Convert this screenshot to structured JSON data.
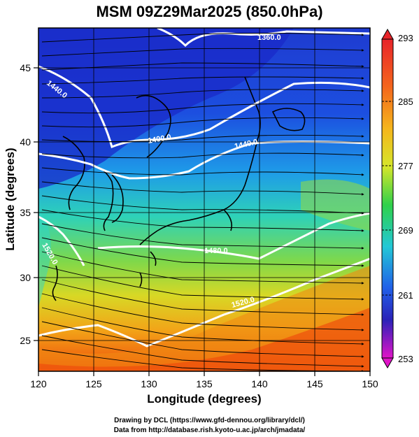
{
  "title": "MSM 09Z29Mar2025 (850.0hPa)",
  "xlabel": "Longitude (degrees)",
  "ylabel": "Latitude  (degrees)",
  "x_ticks": [
    "120",
    "125",
    "130",
    "135",
    "140",
    "145",
    "150"
  ],
  "y_ticks": [
    "25",
    "30",
    "35",
    "40",
    "45"
  ],
  "colorbar_ticks": [
    "293",
    "285",
    "277",
    "269",
    "261",
    "253"
  ],
  "contour_labels": [
    "1360.0",
    "1440.0",
    "1400.0",
    "1440.0",
    "1480.0",
    "1520.0",
    "1520.0"
  ],
  "footer_line1": "Drawing by DCL (https://www.gfd-dennou.org/library/dcl/)",
  "footer_line2": "Data from http://database.rish.kyoto-u.ac.jp/arch/jmadata/",
  "colors": {
    "cold": "#1a2fd6",
    "mid": "#21c9c0",
    "warm": "#f29a14",
    "hot": "#f0400a"
  },
  "chart_data": {
    "type": "heatmap",
    "title": "MSM 09Z29Mar2025 (850.0hPa)",
    "xlabel": "Longitude (degrees)",
    "ylabel": "Latitude  (degrees)",
    "xlim": [
      120,
      150
    ],
    "ylim": [
      22.4,
      47.6
    ],
    "colorbar_range": [
      253,
      293
    ],
    "colorbar_ticks": [
      293,
      285,
      277,
      269,
      261,
      253
    ],
    "contour_values": [
      1360,
      1400,
      1440,
      1480,
      1520
    ]
  }
}
